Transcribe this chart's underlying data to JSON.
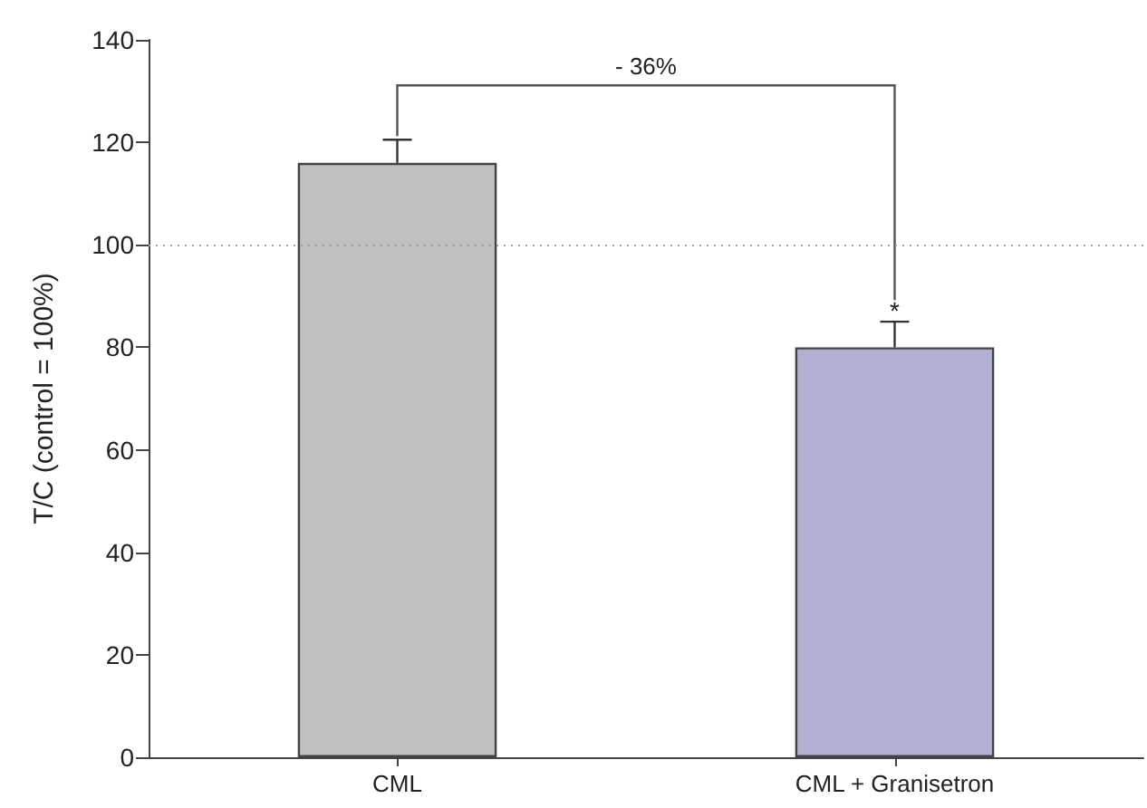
{
  "chart_data": {
    "type": "bar",
    "ylabel": "T/C (control = 100%)",
    "categories": [
      "CML",
      "CML + Granisetron"
    ],
    "values": [
      116,
      80
    ],
    "colors": [
      "#c0c0c0",
      "#b3b1d3"
    ],
    "errors": [
      [
        116,
        120.5
      ],
      [
        80,
        85
      ]
    ],
    "ylim": [
      0,
      140
    ],
    "yticks": [
      0,
      20,
      40,
      60,
      80,
      100,
      120,
      140
    ],
    "grid": false,
    "ref_lines": [
      {
        "axis": "y",
        "value": 100,
        "color": "#a0a0a0",
        "line_style": "dotted"
      }
    ],
    "annotations": [
      "- 36%",
      "*"
    ]
  }
}
